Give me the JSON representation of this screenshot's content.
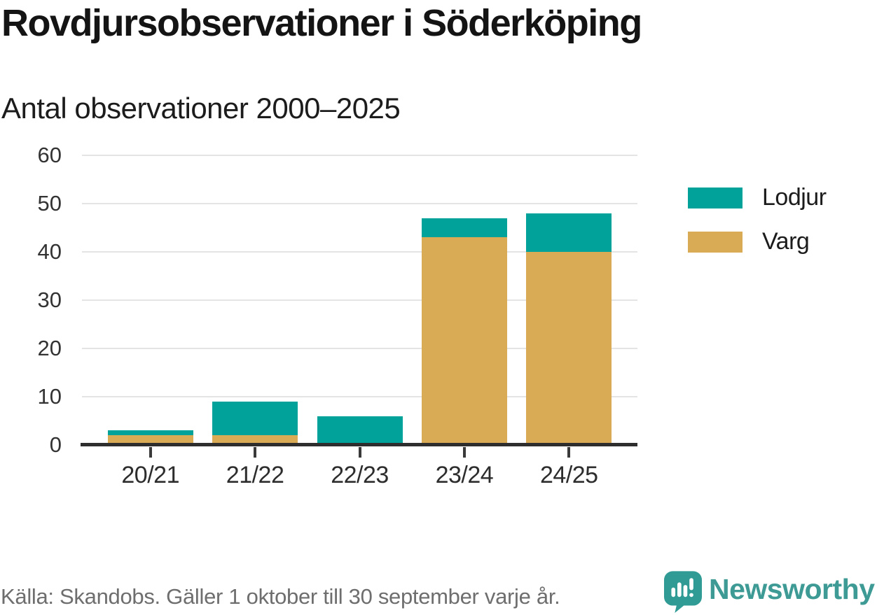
{
  "header": {
    "title": "Rovdjursobservationer i Söderköping",
    "subtitle": "Antal observationer 2000–2025"
  },
  "chart_data": {
    "type": "bar",
    "stacked": true,
    "title": "Rovdjursobservationer i Söderköping",
    "subtitle": "Antal observationer 2000–2025",
    "categories": [
      "20/21",
      "21/22",
      "22/23",
      "23/24",
      "24/25"
    ],
    "series": [
      {
        "name": "Varg",
        "color": "#d9ab55",
        "values": [
          2,
          2,
          0,
          43,
          40
        ]
      },
      {
        "name": "Lodjur",
        "color": "#00a29a",
        "values": [
          1,
          7,
          6,
          4,
          8
        ]
      }
    ],
    "totals": [
      3,
      9,
      6,
      47,
      48
    ],
    "xlabel": "",
    "ylabel": "",
    "ylim": [
      0,
      60
    ],
    "yticks": [
      0,
      10,
      20,
      30,
      40,
      50,
      60
    ],
    "grid": "horizontal",
    "legend_position": "right"
  },
  "legend": {
    "items": [
      {
        "label": "Lodjur",
        "color": "#00a29a"
      },
      {
        "label": "Varg",
        "color": "#d9ab55"
      }
    ]
  },
  "footer": {
    "source": "Källa: Skandobs. Gäller 1 oktober till 30 september varje år.",
    "brand": "Newsworthy"
  },
  "colors": {
    "lodjur": "#00a29a",
    "varg": "#d9ab55",
    "axis": "#2e2e2e",
    "gridline": "#e4e4e4",
    "brand_teal": "#3d9a94"
  },
  "icons": {
    "brand": "newsworthy-bubble-chart-icon"
  }
}
